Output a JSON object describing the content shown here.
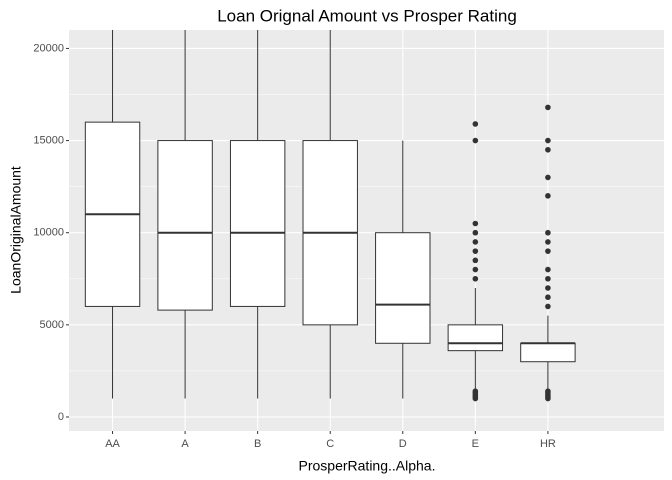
{
  "chart_data": {
    "type": "box",
    "title": "Loan Orignal Amount vs Prosper Rating",
    "x_label": "ProsperRating..Alpha.",
    "y_label": "LoanOriginalAmount",
    "categories": [
      "AA",
      "A",
      "B",
      "C",
      "D",
      "E",
      "HR"
    ],
    "boxes": [
      {
        "low": 1000,
        "q1": 6000,
        "median": 11000,
        "q3": 16000,
        "high": 25000,
        "outliers": []
      },
      {
        "low": 1000,
        "q1": 5800,
        "median": 10000,
        "q3": 15000,
        "high": 25000,
        "outliers": []
      },
      {
        "low": 1000,
        "q1": 6000,
        "median": 10000,
        "q3": 15000,
        "high": 25000,
        "outliers": []
      },
      {
        "low": 1000,
        "q1": 5000,
        "median": 10000,
        "q3": 15000,
        "high": 25000,
        "outliers": []
      },
      {
        "low": 1000,
        "q1": 4000,
        "median": 6100,
        "q3": 10000,
        "high": 15000,
        "outliers": []
      },
      {
        "low": 1500,
        "q1": 3600,
        "median": 4000,
        "q3": 5000,
        "high": 7000,
        "outliers": [
          1000,
          1100,
          1200,
          1300,
          1400,
          7500,
          8000,
          8500,
          9000,
          9500,
          10000,
          10500,
          15000,
          15900
        ]
      },
      {
        "low": 1500,
        "q1": 3000,
        "median": 4000,
        "q3": 4000,
        "high": 5500,
        "outliers": [
          1000,
          1100,
          1200,
          1300,
          1400,
          6000,
          6500,
          7000,
          7500,
          8000,
          9000,
          9500,
          10000,
          12000,
          13000,
          14500,
          15000,
          16800
        ]
      }
    ],
    "box_fill": "#ffffff",
    "line_color": "#333333",
    "ylim": [
      -760,
      21000
    ],
    "yticks": [
      0,
      5000,
      10000,
      15000,
      20000
    ],
    "minor_yticks": [
      2500,
      7500,
      12500,
      17500
    ],
    "grid": true
  }
}
